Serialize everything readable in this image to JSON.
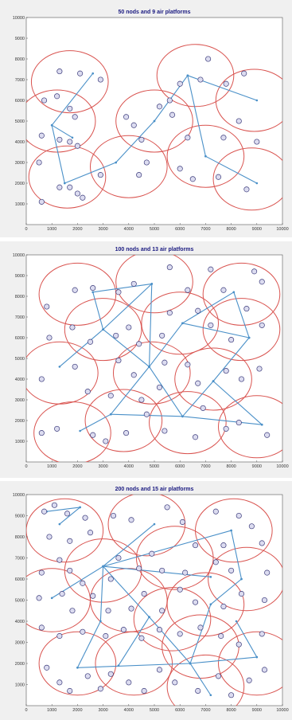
{
  "colors": {
    "background": "#f0f0f0",
    "plot": "#ffffff",
    "circle": "#d9534f",
    "link": "#4a90c8",
    "node_fill": "#dcdcf0",
    "node_stroke": "#3a3a7a",
    "title": "#1a1a80"
  },
  "chart_data": [
    {
      "type": "scatter",
      "title": "50 nods and 9 air platforms",
      "xlim": [
        0,
        10000
      ],
      "ylim": [
        0,
        10000
      ],
      "xticks": [
        0,
        1000,
        2000,
        3000,
        4000,
        5000,
        6000,
        7000,
        8000,
        9000,
        10000
      ],
      "yticks": [
        1000,
        2000,
        3000,
        4000,
        5000,
        6000,
        7000,
        8000,
        9000,
        10000
      ],
      "coverage_radius": 1500,
      "platforms": [
        [
          1700,
          6900
        ],
        [
          1200,
          5000
        ],
        [
          1600,
          2300
        ],
        [
          5000,
          5000
        ],
        [
          4000,
          2800
        ],
        [
          6600,
          7200
        ],
        [
          7000,
          3300
        ],
        [
          8900,
          6000
        ],
        [
          8800,
          2200
        ]
      ],
      "links": [
        [
          [
            2600,
            7300
          ],
          [
            1000,
            4800
          ]
        ],
        [
          [
            1000,
            4800
          ],
          [
            1500,
            2000
          ]
        ],
        [
          [
            1500,
            2000
          ],
          [
            3500,
            3000
          ]
        ],
        [
          [
            3500,
            3000
          ],
          [
            5000,
            5000
          ]
        ],
        [
          [
            5000,
            5000
          ],
          [
            6300,
            7200
          ]
        ],
        [
          [
            6300,
            7200
          ],
          [
            7000,
            3300
          ]
        ],
        [
          [
            7000,
            3300
          ],
          [
            9000,
            2000
          ]
        ],
        [
          [
            6300,
            7200
          ],
          [
            9000,
            6000
          ]
        ],
        [
          [
            1000,
            4800
          ],
          [
            1800,
            4200
          ]
        ]
      ],
      "nodes": [
        [
          1300,
          7400
        ],
        [
          2100,
          7300
        ],
        [
          2900,
          7000
        ],
        [
          700,
          6000
        ],
        [
          1200,
          6200
        ],
        [
          1700,
          5600
        ],
        [
          1900,
          5200
        ],
        [
          600,
          4300
        ],
        [
          1300,
          4100
        ],
        [
          1700,
          4000
        ],
        [
          2000,
          3800
        ],
        [
          500,
          3000
        ],
        [
          1300,
          1800
        ],
        [
          1700,
          1800
        ],
        [
          2000,
          1500
        ],
        [
          2200,
          1300
        ],
        [
          600,
          1100
        ],
        [
          3900,
          5200
        ],
        [
          4200,
          4800
        ],
        [
          4500,
          4100
        ],
        [
          5200,
          5700
        ],
        [
          5700,
          5300
        ],
        [
          4700,
          3000
        ],
        [
          4400,
          2400
        ],
        [
          2900,
          2400
        ],
        [
          6000,
          6800
        ],
        [
          6800,
          7000
        ],
        [
          7100,
          8000
        ],
        [
          7800,
          6800
        ],
        [
          8500,
          7300
        ],
        [
          8300,
          5000
        ],
        [
          6300,
          4200
        ],
        [
          6000,
          2700
        ],
        [
          6500,
          2200
        ],
        [
          7500,
          2300
        ],
        [
          8600,
          1700
        ],
        [
          7700,
          4200
        ],
        [
          9000,
          4000
        ],
        [
          5600,
          6000
        ]
      ]
    },
    {
      "type": "scatter",
      "title": "100 nods and 13 air platforms",
      "xlim": [
        0,
        10000
      ],
      "ylim": [
        0,
        10000
      ],
      "xticks": [
        0,
        1000,
        2000,
        3000,
        4000,
        5000,
        6000,
        7000,
        8000,
        9000,
        10000
      ],
      "yticks": [
        1000,
        2000,
        3000,
        4000,
        5000,
        6000,
        7000,
        8000,
        9000,
        10000
      ],
      "coverage_radius": 1500,
      "platforms": [
        [
          2000,
          8100
        ],
        [
          5000,
          8700
        ],
        [
          8400,
          8100
        ],
        [
          3000,
          6400
        ],
        [
          6000,
          6700
        ],
        [
          8400,
          6400
        ],
        [
          1300,
          4300
        ],
        [
          4900,
          4300
        ],
        [
          7300,
          4000
        ],
        [
          1800,
          1400
        ],
        [
          3800,
          2000
        ],
        [
          6300,
          1900
        ],
        [
          9000,
          1700
        ]
      ],
      "links": [
        [
          [
            2600,
            8200
          ],
          [
            3000,
            6400
          ]
        ],
        [
          [
            2600,
            8200
          ],
          [
            4900,
            8600
          ]
        ],
        [
          [
            4900,
            8600
          ],
          [
            3000,
            6400
          ]
        ],
        [
          [
            3000,
            6400
          ],
          [
            1300,
            4600
          ]
        ],
        [
          [
            3000,
            6400
          ],
          [
            4800,
            4600
          ]
        ],
        [
          [
            4800,
            4600
          ],
          [
            6100,
            6700
          ]
        ],
        [
          [
            6100,
            6700
          ],
          [
            8100,
            8200
          ]
        ],
        [
          [
            8100,
            8200
          ],
          [
            8700,
            6000
          ]
        ],
        [
          [
            6100,
            6700
          ],
          [
            8700,
            6000
          ]
        ],
        [
          [
            4800,
            4600
          ],
          [
            6100,
            2200
          ]
        ],
        [
          [
            6100,
            2200
          ],
          [
            7300,
            3900
          ]
        ],
        [
          [
            7300,
            3900
          ],
          [
            8700,
            6000
          ]
        ],
        [
          [
            6100,
            2200
          ],
          [
            9200,
            1800
          ]
        ],
        [
          [
            3300,
            2300
          ],
          [
            4800,
            4600
          ]
        ],
        [
          [
            3300,
            2300
          ],
          [
            2100,
            1500
          ]
        ],
        [
          [
            3300,
            2300
          ],
          [
            6100,
            2200
          ]
        ],
        [
          [
            7300,
            3900
          ],
          [
            9200,
            1800
          ]
        ],
        [
          [
            4900,
            8600
          ],
          [
            4800,
            4600
          ]
        ]
      ],
      "nodes": [
        [
          800,
          7500
        ],
        [
          1900,
          8300
        ],
        [
          2600,
          8400
        ],
        [
          3600,
          8200
        ],
        [
          4200,
          8600
        ],
        [
          5600,
          9400
        ],
        [
          6300,
          8300
        ],
        [
          7200,
          9300
        ],
        [
          7700,
          8300
        ],
        [
          8900,
          9200
        ],
        [
          9200,
          8700
        ],
        [
          900,
          6000
        ],
        [
          1800,
          6500
        ],
        [
          2500,
          5800
        ],
        [
          3500,
          6100
        ],
        [
          4000,
          6500
        ],
        [
          4400,
          5700
        ],
        [
          5300,
          6100
        ],
        [
          5600,
          7200
        ],
        [
          6700,
          7300
        ],
        [
          7200,
          6600
        ],
        [
          8000,
          5900
        ],
        [
          8600,
          7400
        ],
        [
          9200,
          6600
        ],
        [
          600,
          4000
        ],
        [
          1900,
          4600
        ],
        [
          2400,
          3400
        ],
        [
          3600,
          4900
        ],
        [
          4200,
          4200
        ],
        [
          5400,
          4800
        ],
        [
          6300,
          4700
        ],
        [
          6700,
          3800
        ],
        [
          7800,
          4400
        ],
        [
          8400,
          4000
        ],
        [
          9100,
          4500
        ],
        [
          600,
          1400
        ],
        [
          1200,
          1600
        ],
        [
          2600,
          1300
        ],
        [
          3100,
          1000
        ],
        [
          3900,
          1400
        ],
        [
          4700,
          2300
        ],
        [
          5400,
          1500
        ],
        [
          6600,
          1200
        ],
        [
          7800,
          1600
        ],
        [
          8300,
          1900
        ],
        [
          9400,
          1300
        ],
        [
          3300,
          3200
        ],
        [
          4500,
          3000
        ],
        [
          5200,
          3600
        ],
        [
          6900,
          2600
        ]
      ]
    },
    {
      "type": "scatter",
      "title": "200 nods and 15 air platforms",
      "xlim": [
        0,
        10000
      ],
      "ylim": [
        0,
        10000
      ],
      "xticks": [
        0,
        1000,
        2000,
        3000,
        4000,
        5000,
        6000,
        7000,
        8000,
        9000,
        10000
      ],
      "yticks": [
        1000,
        2000,
        3000,
        4000,
        5000,
        6000,
        7000,
        8000,
        9000,
        10000
      ],
      "coverage_radius": 1500,
      "platforms": [
        [
          1500,
          8300
        ],
        [
          4700,
          8600
        ],
        [
          8100,
          8300
        ],
        [
          3000,
          6400
        ],
        [
          5800,
          7000
        ],
        [
          8600,
          6000
        ],
        [
          1000,
          5000
        ],
        [
          4000,
          5000
        ],
        [
          7000,
          4800
        ],
        [
          2000,
          2000
        ],
        [
          4200,
          2000
        ],
        [
          6800,
          2800
        ],
        [
          9000,
          2000
        ],
        [
          7000,
          900
        ],
        [
          5700,
          4100
        ]
      ],
      "links": [
        [
          [
            800,
            9200
          ],
          [
            2100,
            9400
          ]
        ],
        [
          [
            2100,
            9400
          ],
          [
            1300,
            8600
          ]
        ],
        [
          [
            3000,
            6600
          ],
          [
            5000,
            8600
          ]
        ],
        [
          [
            3000,
            6600
          ],
          [
            1000,
            5100
          ]
        ],
        [
          [
            3000,
            6600
          ],
          [
            8000,
            8300
          ]
        ],
        [
          [
            3000,
            6600
          ],
          [
            7200,
            6100
          ]
        ],
        [
          [
            8000,
            8300
          ],
          [
            8400,
            6000
          ]
        ],
        [
          [
            3000,
            6600
          ],
          [
            2900,
            4000
          ]
        ],
        [
          [
            2900,
            4000
          ],
          [
            2000,
            1800
          ]
        ],
        [
          [
            2000,
            1800
          ],
          [
            6400,
            2000
          ]
        ],
        [
          [
            6400,
            2000
          ],
          [
            9000,
            2300
          ]
        ],
        [
          [
            6400,
            2000
          ],
          [
            7200,
            4800
          ]
        ],
        [
          [
            7200,
            4800
          ],
          [
            8400,
            6000
          ]
        ],
        [
          [
            4800,
            4200
          ],
          [
            6400,
            2000
          ]
        ],
        [
          [
            4800,
            4200
          ],
          [
            3000,
            6600
          ]
        ],
        [
          [
            6400,
            2000
          ],
          [
            7200,
            500
          ]
        ],
        [
          [
            9000,
            2300
          ],
          [
            8200,
            4000
          ]
        ],
        [
          [
            3600,
            1900
          ],
          [
            4800,
            4200
          ]
        ]
      ],
      "nodes": [
        [
          700,
          9200
        ],
        [
          1100,
          9500
        ],
        [
          1600,
          9100
        ],
        [
          2300,
          8900
        ],
        [
          2500,
          8200
        ],
        [
          900,
          8000
        ],
        [
          1700,
          7800
        ],
        [
          3400,
          9000
        ],
        [
          4100,
          8800
        ],
        [
          5500,
          9400
        ],
        [
          6100,
          8700
        ],
        [
          7400,
          9200
        ],
        [
          8300,
          9000
        ],
        [
          8800,
          8500
        ],
        [
          9200,
          7700
        ],
        [
          7700,
          7600
        ],
        [
          600,
          6300
        ],
        [
          1300,
          6900
        ],
        [
          1700,
          6400
        ],
        [
          2200,
          5800
        ],
        [
          3300,
          6000
        ],
        [
          3600,
          7000
        ],
        [
          4400,
          6500
        ],
        [
          4900,
          7200
        ],
        [
          5300,
          6400
        ],
        [
          6200,
          6300
        ],
        [
          6600,
          7600
        ],
        [
          7400,
          6800
        ],
        [
          8000,
          6400
        ],
        [
          9400,
          6300
        ],
        [
          500,
          5100
        ],
        [
          1400,
          5300
        ],
        [
          1800,
          4500
        ],
        [
          2600,
          5200
        ],
        [
          3200,
          4500
        ],
        [
          4100,
          4600
        ],
        [
          4600,
          5300
        ],
        [
          5300,
          4500
        ],
        [
          6000,
          5500
        ],
        [
          6600,
          4900
        ],
        [
          7700,
          4700
        ],
        [
          8400,
          5300
        ],
        [
          9300,
          5000
        ],
        [
          600,
          3700
        ],
        [
          1300,
          3300
        ],
        [
          2200,
          3500
        ],
        [
          3100,
          3300
        ],
        [
          3800,
          3600
        ],
        [
          4500,
          3200
        ],
        [
          5200,
          3600
        ],
        [
          6000,
          3400
        ],
        [
          6800,
          3700
        ],
        [
          7600,
          3300
        ],
        [
          8300,
          2900
        ],
        [
          9200,
          3400
        ],
        [
          800,
          1800
        ],
        [
          1300,
          1100
        ],
        [
          1700,
          700
        ],
        [
          2400,
          1400
        ],
        [
          2900,
          800
        ],
        [
          3300,
          1500
        ],
        [
          4000,
          1100
        ],
        [
          4600,
          700
        ],
        [
          5200,
          1700
        ],
        [
          5800,
          1100
        ],
        [
          6700,
          700
        ],
        [
          7500,
          1400
        ],
        [
          8000,
          500
        ],
        [
          8700,
          1200
        ],
        [
          9300,
          1700
        ]
      ]
    }
  ]
}
